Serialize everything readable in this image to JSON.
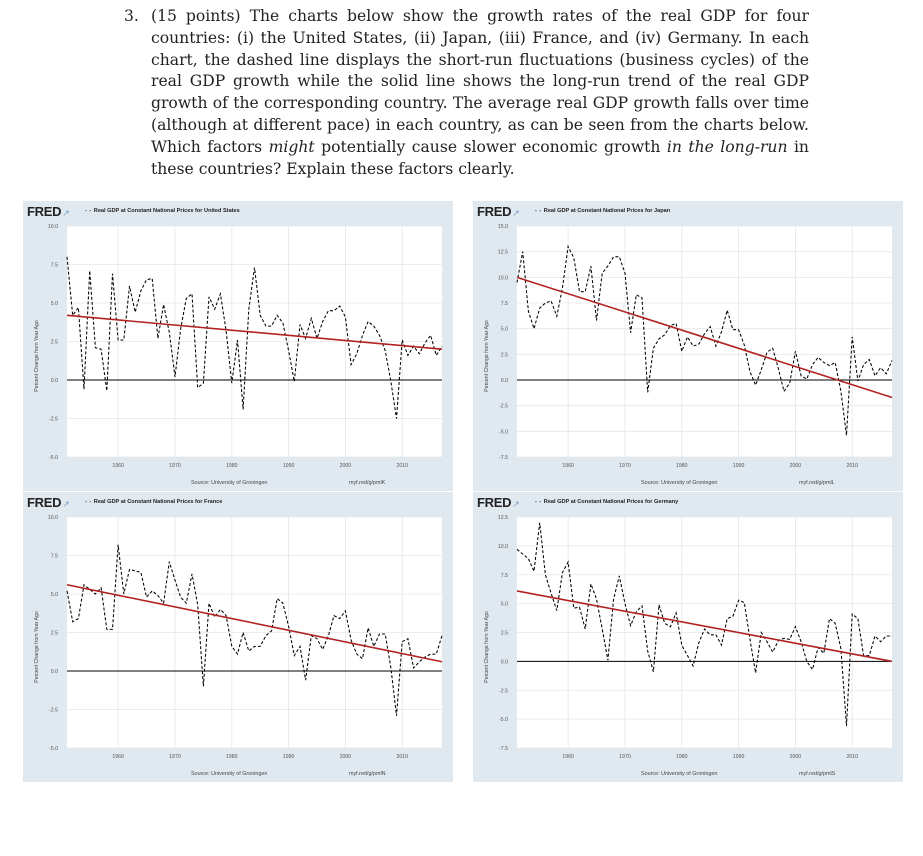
{
  "question": {
    "number": "3.",
    "text_before": "(15 points) The charts below show the growth rates of the real GDP for four countries: (i) the United States, (ii) Japan, (iii) France, and (iv) Germany. In each chart, the dashed line displays the short-run fluctuations (business cycles) of the real GDP growth while the solid line shows the long-run trend of the real GDP growth of the corresponding country. The average real GDP growth falls over time (although at different pace) in each country, as can be seen from the charts below. Which factors",
    "italic1": "might",
    "text_middle": "potentially cause slower economic growth",
    "italic2": "in the long-run",
    "text_after": "in these countries? Explain these factors clearly."
  },
  "colors": {
    "panel_bg": "#e1e9f0",
    "series": "#000000",
    "trend": "#b22222",
    "grid": "#e6e6e6",
    "zero_line": "#000000",
    "fred_mark": "#7aa1c4"
  },
  "panels": [
    {
      "logo": "FRED",
      "legend_label": "Real GDP at Constant National Prices for United States",
      "ylabel": "Percent Change from Year Ago",
      "source": "Source: University of Groningen",
      "url": "myf.red/g/pmlK"
    },
    {
      "logo": "FRED",
      "legend_label": "Real GDP at Constant National Prices for Japan",
      "ylabel": "Percent Change from Year Ago",
      "source": "Source: University of Groningen",
      "url": "myf.red/g/pmlL"
    },
    {
      "logo": "FRED",
      "legend_label": "Real GDP at Constant National Prices for France",
      "ylabel": "Percent Change from Year Ago",
      "source": "Source: University of Groningen",
      "url": "myf.red/g/pmlN"
    },
    {
      "logo": "FRED",
      "legend_label": "Real GDP at Constant National Prices for Germany",
      "ylabel": "Percent Change from Year Ago",
      "source": "Source: University of Groningen",
      "url": "myf.red/g/pmlS"
    }
  ],
  "chart_data": [
    {
      "type": "line",
      "title": "Real GDP at Constant National Prices for United States",
      "ylabel": "Percent Change from Year Ago",
      "ylim": [
        -5,
        10
      ],
      "yticks": [
        "10.0",
        "7.5",
        "5.0",
        "2.5",
        "0.0",
        "-2.5",
        "-5.0"
      ],
      "yticks_values": [
        10,
        7.5,
        5,
        2.5,
        0,
        -2.5,
        -5
      ],
      "xlim": [
        1951,
        2017
      ],
      "xticks": [
        "1960",
        "1970",
        "1980",
        "1990",
        "2000",
        "2010"
      ],
      "xticks_values": [
        1960,
        1970,
        1980,
        1990,
        2000,
        2010
      ],
      "grid": true,
      "series": [
        {
          "name": "Real GDP at Constant National Prices for United States",
          "style": "dashed",
          "x": [
            1951,
            1952,
            1953,
            1954,
            1955,
            1956,
            1957,
            1958,
            1959,
            1960,
            1961,
            1962,
            1963,
            1964,
            1965,
            1966,
            1967,
            1968,
            1969,
            1970,
            1971,
            1972,
            1973,
            1974,
            1975,
            1976,
            1977,
            1978,
            1979,
            1980,
            1981,
            1982,
            1983,
            1984,
            1985,
            1986,
            1987,
            1988,
            1989,
            1990,
            1991,
            1992,
            1993,
            1994,
            1995,
            1996,
            1997,
            1998,
            1999,
            2000,
            2001,
            2002,
            2003,
            2004,
            2005,
            2006,
            2007,
            2008,
            2009,
            2010,
            2011,
            2012,
            2013,
            2014,
            2015,
            2016,
            2017
          ],
          "values": [
            8.0,
            4.2,
            4.7,
            -0.6,
            7.1,
            2.1,
            2.0,
            -0.7,
            6.9,
            2.6,
            2.6,
            6.1,
            4.4,
            5.8,
            6.5,
            6.6,
            2.7,
            4.9,
            3.1,
            0.2,
            3.3,
            5.3,
            5.6,
            -0.5,
            -0.2,
            5.4,
            4.6,
            5.6,
            3.2,
            -0.2,
            2.6,
            -1.9,
            4.6,
            7.3,
            4.2,
            3.5,
            3.5,
            4.2,
            3.7,
            1.9,
            -0.1,
            3.6,
            2.7,
            4.0,
            2.7,
            3.8,
            4.5,
            4.5,
            4.8,
            4.1,
            1.0,
            1.7,
            2.9,
            3.8,
            3.5,
            2.9,
            1.9,
            -0.1,
            -2.5,
            2.6,
            1.6,
            2.2,
            1.7,
            2.4,
            2.9,
            1.6,
            2.2
          ]
        },
        {
          "name": "Long-run trend",
          "style": "solid",
          "x": [
            1951,
            2017
          ],
          "values": [
            4.2,
            2.0
          ]
        }
      ]
    },
    {
      "type": "line",
      "title": "Real GDP at Constant National Prices for Japan",
      "ylabel": "Percent Change from Year Ago",
      "ylim": [
        -7.5,
        15
      ],
      "yticks": [
        "15.0",
        "12.5",
        "10.0",
        "7.5",
        "5.0",
        "2.5",
        "0.0",
        "-2.5",
        "-5.0",
        "-7.5"
      ],
      "yticks_values": [
        15,
        12.5,
        10,
        7.5,
        5,
        2.5,
        0,
        -2.5,
        -5,
        -7.5
      ],
      "xlim": [
        1951,
        2017
      ],
      "xticks": [
        "1960",
        "1970",
        "1980",
        "1990",
        "2000",
        "2010"
      ],
      "xticks_values": [
        1960,
        1970,
        1980,
        1990,
        2000,
        2010
      ],
      "grid": true,
      "series": [
        {
          "name": "Real GDP at Constant National Prices for Japan",
          "style": "dashed",
          "x": [
            1951,
            1952,
            1953,
            1954,
            1955,
            1956,
            1957,
            1958,
            1959,
            1960,
            1961,
            1962,
            1963,
            1964,
            1965,
            1966,
            1967,
            1968,
            1969,
            1970,
            1971,
            1972,
            1973,
            1974,
            1975,
            1976,
            1977,
            1978,
            1979,
            1980,
            1981,
            1982,
            1983,
            1984,
            1985,
            1986,
            1987,
            1988,
            1989,
            1990,
            1991,
            1992,
            1993,
            1994,
            1995,
            1996,
            1997,
            1998,
            1999,
            2000,
            2001,
            2002,
            2003,
            2004,
            2005,
            2006,
            2007,
            2008,
            2009,
            2010,
            2011,
            2012,
            2013,
            2014,
            2015,
            2016,
            2017
          ],
          "values": [
            9.5,
            12.5,
            6.7,
            5.0,
            7.0,
            7.5,
            7.7,
            6.2,
            9.0,
            13.0,
            11.9,
            8.6,
            8.6,
            11.1,
            5.8,
            10.4,
            11.1,
            12.0,
            12.0,
            10.4,
            4.6,
            8.3,
            8.0,
            -1.2,
            3.1,
            4.0,
            4.4,
            5.3,
            5.5,
            2.8,
            4.2,
            3.3,
            3.5,
            4.5,
            5.2,
            3.3,
            4.7,
            6.8,
            4.9,
            4.9,
            3.4,
            0.8,
            -0.5,
            1.0,
            2.7,
            3.1,
            1.1,
            -1.1,
            -0.3,
            2.8,
            0.4,
            0.1,
            1.5,
            2.2,
            1.7,
            1.4,
            1.7,
            -1.1,
            -5.4,
            4.2,
            -0.1,
            1.5,
            2.0,
            0.4,
            1.2,
            0.6,
            1.9
          ]
        },
        {
          "name": "Long-run trend",
          "style": "solid",
          "x": [
            1951,
            2017
          ],
          "values": [
            10.0,
            -1.7
          ]
        }
      ]
    },
    {
      "type": "line",
      "title": "Real GDP at Constant National Prices for France",
      "ylabel": "Percent Change from Year Ago",
      "ylim": [
        -5,
        10
      ],
      "yticks": [
        "10.0",
        "7.5",
        "5.0",
        "2.5",
        "0.0",
        "-2.5",
        "-5.0"
      ],
      "yticks_values": [
        10,
        7.5,
        5,
        2.5,
        0,
        -2.5,
        -5
      ],
      "xlim": [
        1951,
        2017
      ],
      "xticks": [
        "1960",
        "1970",
        "1980",
        "1990",
        "2000",
        "2010"
      ],
      "xticks_values": [
        1960,
        1970,
        1980,
        1990,
        2000,
        2010
      ],
      "grid": true,
      "series": [
        {
          "name": "Real GDP at Constant National Prices for France",
          "style": "dashed",
          "x": [
            1951,
            1952,
            1953,
            1954,
            1955,
            1956,
            1957,
            1958,
            1959,
            1960,
            1961,
            1962,
            1963,
            1964,
            1965,
            1966,
            1967,
            1968,
            1969,
            1970,
            1971,
            1972,
            1973,
            1974,
            1975,
            1976,
            1977,
            1978,
            1979,
            1980,
            1981,
            1982,
            1983,
            1984,
            1985,
            1986,
            1987,
            1988,
            1989,
            1990,
            1991,
            1992,
            1993,
            1994,
            1995,
            1996,
            1997,
            1998,
            1999,
            2000,
            2001,
            2002,
            2003,
            2004,
            2005,
            2006,
            2007,
            2008,
            2009,
            2010,
            2011,
            2012,
            2013,
            2014,
            2015,
            2016,
            2017
          ],
          "values": [
            5.2,
            3.2,
            3.4,
            5.6,
            5.3,
            5.0,
            5.4,
            2.7,
            2.7,
            8.2,
            5.0,
            6.6,
            6.5,
            6.4,
            4.8,
            5.2,
            4.9,
            4.4,
            7.1,
            5.9,
            4.8,
            4.4,
            6.3,
            4.3,
            -1.0,
            4.4,
            3.5,
            4.0,
            3.6,
            1.6,
            1.1,
            2.5,
            1.3,
            1.6,
            1.6,
            2.3,
            2.6,
            4.7,
            4.4,
            2.9,
            1.0,
            1.6,
            -0.6,
            2.3,
            2.1,
            1.4,
            2.3,
            3.6,
            3.4,
            3.9,
            2.0,
            1.1,
            0.8,
            2.8,
            1.6,
            2.4,
            2.4,
            0.2,
            -2.9,
            1.9,
            2.1,
            0.2,
            0.6,
            0.9,
            1.1,
            1.1,
            2.3
          ]
        },
        {
          "name": "Long-run trend",
          "style": "solid",
          "x": [
            1951,
            2017
          ],
          "values": [
            5.6,
            0.6
          ]
        }
      ]
    },
    {
      "type": "line",
      "title": "Real GDP at Constant National Prices for Germany",
      "ylabel": "Percent Change from Year Ago",
      "ylim": [
        -7.5,
        12.5
      ],
      "yticks": [
        "12.5",
        "10.0",
        "7.5",
        "5.0",
        "2.5",
        "0.0",
        "-2.5",
        "-5.0",
        "-7.5"
      ],
      "yticks_values": [
        12.5,
        10,
        7.5,
        5,
        2.5,
        0,
        -2.5,
        -5,
        -7.5
      ],
      "xlim": [
        1951,
        2017
      ],
      "xticks": [
        "1960",
        "1970",
        "1980",
        "1990",
        "2000",
        "2010"
      ],
      "xticks_values": [
        1960,
        1970,
        1980,
        1990,
        2000,
        2010
      ],
      "grid": true,
      "series": [
        {
          "name": "Real GDP at Constant National Prices for Germany",
          "style": "dashed",
          "x": [
            1951,
            1952,
            1953,
            1954,
            1955,
            1956,
            1957,
            1958,
            1959,
            1960,
            1961,
            1962,
            1963,
            1964,
            1965,
            1966,
            1967,
            1968,
            1969,
            1970,
            1971,
            1972,
            1973,
            1974,
            1975,
            1976,
            1977,
            1978,
            1979,
            1980,
            1981,
            1982,
            1983,
            1984,
            1985,
            1986,
            1987,
            1988,
            1989,
            1990,
            1991,
            1992,
            1993,
            1994,
            1995,
            1996,
            1997,
            1998,
            1999,
            2000,
            2001,
            2002,
            2003,
            2004,
            2005,
            2006,
            2007,
            2008,
            2009,
            2010,
            2011,
            2012,
            2013,
            2014,
            2015,
            2016,
            2017
          ],
          "values": [
            9.7,
            9.3,
            8.9,
            7.8,
            12.0,
            7.5,
            5.9,
            4.4,
            7.7,
            8.6,
            4.6,
            4.7,
            2.8,
            6.7,
            5.4,
            2.8,
            0.1,
            5.4,
            7.4,
            5.0,
            3.1,
            4.3,
            4.8,
            0.9,
            -0.9,
            4.9,
            3.3,
            3.0,
            4.2,
            1.4,
            0.5,
            -0.4,
            1.6,
            2.8,
            2.3,
            2.3,
            1.4,
            3.7,
            3.9,
            5.3,
            5.1,
            1.9,
            -1.0,
            2.5,
            1.7,
            0.8,
            1.8,
            2.0,
            1.9,
            3.0,
            1.7,
            0.0,
            -0.7,
            1.2,
            0.7,
            3.7,
            3.3,
            1.1,
            -5.6,
            4.1,
            3.7,
            0.5,
            0.5,
            2.2,
            1.7,
            2.2,
            2.2
          ]
        },
        {
          "name": "Long-run trend",
          "style": "solid",
          "x": [
            1951,
            2017
          ],
          "values": [
            6.1,
            0.0
          ]
        }
      ]
    }
  ]
}
